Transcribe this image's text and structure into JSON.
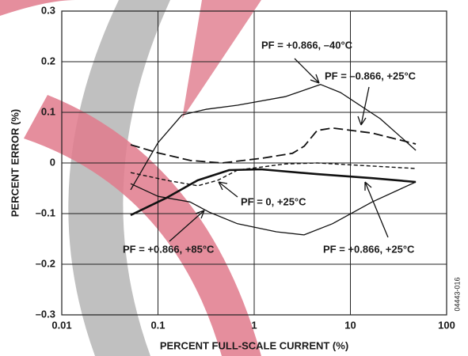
{
  "chart_data": {
    "type": "line",
    "xlabel": "PERCENT FULL-SCALE CURRENT (%)",
    "ylabel": "PERCENT ERROR (%)",
    "note": "04443-016",
    "xscale": "log",
    "xlim": [
      0.01,
      100
    ],
    "xticks": [
      0.01,
      0.1,
      1,
      10,
      100
    ],
    "ylim": [
      -0.3,
      0.3
    ],
    "yticks": [
      {
        "value": -0.3,
        "label": "–0.3"
      },
      {
        "value": -0.2,
        "label": "–0.2"
      },
      {
        "value": -0.1,
        "label": "–0.1"
      },
      0,
      0.1,
      0.2,
      0.3
    ],
    "grid": true,
    "series": [
      {
        "name": "PF = +0.866, –40°C",
        "color": "#111111",
        "style": "solid",
        "x": [
          0.052,
          0.1,
          0.178,
          0.315,
          0.67,
          2.1,
          3.7,
          4.9,
          7.9,
          20.4,
          47.8
        ],
        "values": [
          -0.053,
          0.04,
          0.095,
          0.106,
          0.114,
          0.131,
          0.147,
          0.155,
          0.139,
          0.0875,
          0.025
        ]
      },
      {
        "name": "PF = –0.866, +25°C",
        "color": "#111111",
        "style": "dashed",
        "x": [
          0.052,
          0.1,
          0.216,
          0.46,
          1.18,
          2.5,
          3.3,
          4.5,
          6.5,
          16.8,
          47.8
        ],
        "values": [
          0.036,
          0.02,
          0.005,
          0,
          0.009,
          0.019,
          0.033,
          0.064,
          0.069,
          0.059,
          0.0375
        ]
      },
      {
        "name": "PF = 0, +25°C",
        "color": "#111111",
        "style": "short-dashed",
        "x": [
          0.052,
          0.122,
          0.26,
          0.42,
          0.67,
          2.1,
          4.5,
          47.8
        ],
        "values": [
          -0.019,
          -0.034,
          -0.045,
          -0.034,
          -0.014,
          -0.002,
          0,
          -0.011
        ]
      },
      {
        "name": "PF = +0.866, +85°C",
        "color": "#111111",
        "style": "solid",
        "x": [
          0.052,
          0.1,
          0.216,
          0.34,
          0.67,
          1.7,
          3.3,
          6.5,
          16.8,
          47.8
        ],
        "values": [
          -0.041,
          -0.066,
          -0.077,
          -0.097,
          -0.12,
          -0.136,
          -0.142,
          -0.12,
          -0.077,
          -0.0375
        ]
      },
      {
        "name": "PF = +0.866, +25°C",
        "color": "#111111",
        "style": "bold",
        "x": [
          0.052,
          0.122,
          0.26,
          0.55,
          1.18,
          4.5,
          16.8,
          47.8
        ],
        "values": [
          -0.103,
          -0.069,
          -0.034,
          -0.014,
          -0.0125,
          -0.022,
          -0.03,
          -0.0375
        ]
      }
    ]
  }
}
